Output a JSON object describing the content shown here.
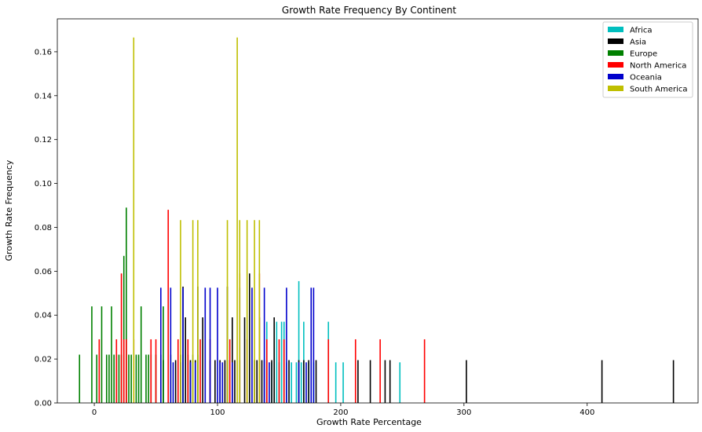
{
  "chart_data": {
    "type": "bar",
    "title": "Growth Rate Frequency By Continent",
    "xlabel": "Growth Rate Percentage",
    "ylabel": "Growth Rate Frequency",
    "xlim": [
      -30,
      490
    ],
    "ylim": [
      0,
      0.175
    ],
    "xticks": [
      0,
      100,
      200,
      300,
      400
    ],
    "yticks": [
      0.0,
      0.02,
      0.04,
      0.06,
      0.08,
      0.1,
      0.12,
      0.14,
      0.16
    ],
    "ytick_labels": [
      "0.00",
      "0.02",
      "0.04",
      "0.06",
      "0.08",
      "0.10",
      "0.12",
      "0.14",
      "0.16"
    ],
    "legend_position": "top-right",
    "series": [
      {
        "name": "Africa",
        "color": "#00bfbf",
        "points": [
          [
            140,
            0.037
          ],
          [
            144,
            0.0185
          ],
          [
            148,
            0.037
          ],
          [
            150,
            0.0185
          ],
          [
            152,
            0.037
          ],
          [
            154,
            0.037
          ],
          [
            156,
            0.0185
          ],
          [
            160,
            0.0185
          ],
          [
            164,
            0.0185
          ],
          [
            166,
            0.0555
          ],
          [
            168,
            0.0185
          ],
          [
            170,
            0.037
          ],
          [
            174,
            0.0185
          ],
          [
            178,
            0.0185
          ],
          [
            190,
            0.037
          ],
          [
            196,
            0.0185
          ],
          [
            202,
            0.0185
          ],
          [
            248,
            0.0185
          ]
        ]
      },
      {
        "name": "Asia",
        "color": "#000000",
        "points": [
          [
            56,
            0.0195
          ],
          [
            66,
            0.0195
          ],
          [
            72,
            0.053
          ],
          [
            74,
            0.039
          ],
          [
            78,
            0.0195
          ],
          [
            82,
            0.0195
          ],
          [
            84,
            0.053
          ],
          [
            88,
            0.039
          ],
          [
            94,
            0.0195
          ],
          [
            98,
            0.0195
          ],
          [
            102,
            0.0195
          ],
          [
            106,
            0.0195
          ],
          [
            108,
            0.053
          ],
          [
            110,
            0.0195
          ],
          [
            112,
            0.039
          ],
          [
            114,
            0.0195
          ],
          [
            118,
            0.0195
          ],
          [
            122,
            0.039
          ],
          [
            126,
            0.059
          ],
          [
            130,
            0.0195
          ],
          [
            132,
            0.0195
          ],
          [
            134,
            0.039
          ],
          [
            136,
            0.0195
          ],
          [
            138,
            0.0195
          ],
          [
            140,
            0.0195
          ],
          [
            144,
            0.0195
          ],
          [
            146,
            0.039
          ],
          [
            158,
            0.0195
          ],
          [
            166,
            0.0195
          ],
          [
            170,
            0.0195
          ],
          [
            174,
            0.0195
          ],
          [
            180,
            0.0195
          ],
          [
            214,
            0.0195
          ],
          [
            224,
            0.0195
          ],
          [
            236,
            0.0195
          ],
          [
            240,
            0.0195
          ],
          [
            302,
            0.0195
          ],
          [
            412,
            0.0195
          ],
          [
            470,
            0.0195
          ]
        ]
      },
      {
        "name": "Europe",
        "color": "#008000",
        "points": [
          [
            -12,
            0.022
          ],
          [
            -2,
            0.044
          ],
          [
            2,
            0.022
          ],
          [
            6,
            0.044
          ],
          [
            10,
            0.022
          ],
          [
            12,
            0.022
          ],
          [
            14,
            0.044
          ],
          [
            16,
            0.022
          ],
          [
            18,
            0.022
          ],
          [
            20,
            0.022
          ],
          [
            22,
            0.022
          ],
          [
            24,
            0.067
          ],
          [
            26,
            0.089
          ],
          [
            28,
            0.022
          ],
          [
            30,
            0.022
          ],
          [
            34,
            0.022
          ],
          [
            36,
            0.022
          ],
          [
            38,
            0.044
          ],
          [
            42,
            0.022
          ],
          [
            44,
            0.022
          ],
          [
            46,
            0.022
          ],
          [
            50,
            0.022
          ],
          [
            54,
            0.022
          ],
          [
            56,
            0.044
          ],
          [
            62,
            0.022
          ],
          [
            70,
            0.022
          ],
          [
            72,
            0.022
          ],
          [
            76,
            0.022
          ],
          [
            80,
            0.022
          ],
          [
            84,
            0.022
          ]
        ]
      },
      {
        "name": "North America",
        "color": "#ff0000",
        "points": [
          [
            4,
            0.029
          ],
          [
            18,
            0.029
          ],
          [
            22,
            0.059
          ],
          [
            24,
            0.029
          ],
          [
            26,
            0.029
          ],
          [
            32,
            0.029
          ],
          [
            46,
            0.029
          ],
          [
            50,
            0.029
          ],
          [
            60,
            0.088
          ],
          [
            68,
            0.029
          ],
          [
            76,
            0.029
          ],
          [
            86,
            0.029
          ],
          [
            94,
            0.029
          ],
          [
            110,
            0.029
          ],
          [
            118,
            0.059
          ],
          [
            124,
            0.029
          ],
          [
            134,
            0.059
          ],
          [
            140,
            0.029
          ],
          [
            150,
            0.029
          ],
          [
            154,
            0.029
          ],
          [
            190,
            0.029
          ],
          [
            212,
            0.029
          ],
          [
            232,
            0.029
          ],
          [
            268,
            0.029
          ]
        ]
      },
      {
        "name": "Oceania",
        "color": "#0000cc",
        "points": [
          [
            54,
            0.0525
          ],
          [
            62,
            0.0525
          ],
          [
            64,
            0.0185
          ],
          [
            70,
            0.0185
          ],
          [
            72,
            0.0525
          ],
          [
            78,
            0.0185
          ],
          [
            82,
            0.0185
          ],
          [
            90,
            0.0525
          ],
          [
            94,
            0.0525
          ],
          [
            100,
            0.0525
          ],
          [
            102,
            0.0185
          ],
          [
            104,
            0.0185
          ],
          [
            112,
            0.0185
          ],
          [
            118,
            0.0525
          ],
          [
            128,
            0.0525
          ],
          [
            138,
            0.0525
          ],
          [
            142,
            0.0185
          ],
          [
            156,
            0.0525
          ],
          [
            166,
            0.0185
          ],
          [
            172,
            0.0185
          ],
          [
            176,
            0.0525
          ],
          [
            178,
            0.0525
          ]
        ]
      },
      {
        "name": "South America",
        "color": "#bfbf00",
        "points": [
          [
            32,
            0.1665
          ],
          [
            70,
            0.0833
          ],
          [
            80,
            0.0833
          ],
          [
            84,
            0.0833
          ],
          [
            108,
            0.0833
          ],
          [
            116,
            0.1665
          ],
          [
            118,
            0.0833
          ],
          [
            124,
            0.0833
          ],
          [
            130,
            0.0833
          ],
          [
            134,
            0.0833
          ]
        ]
      }
    ]
  }
}
